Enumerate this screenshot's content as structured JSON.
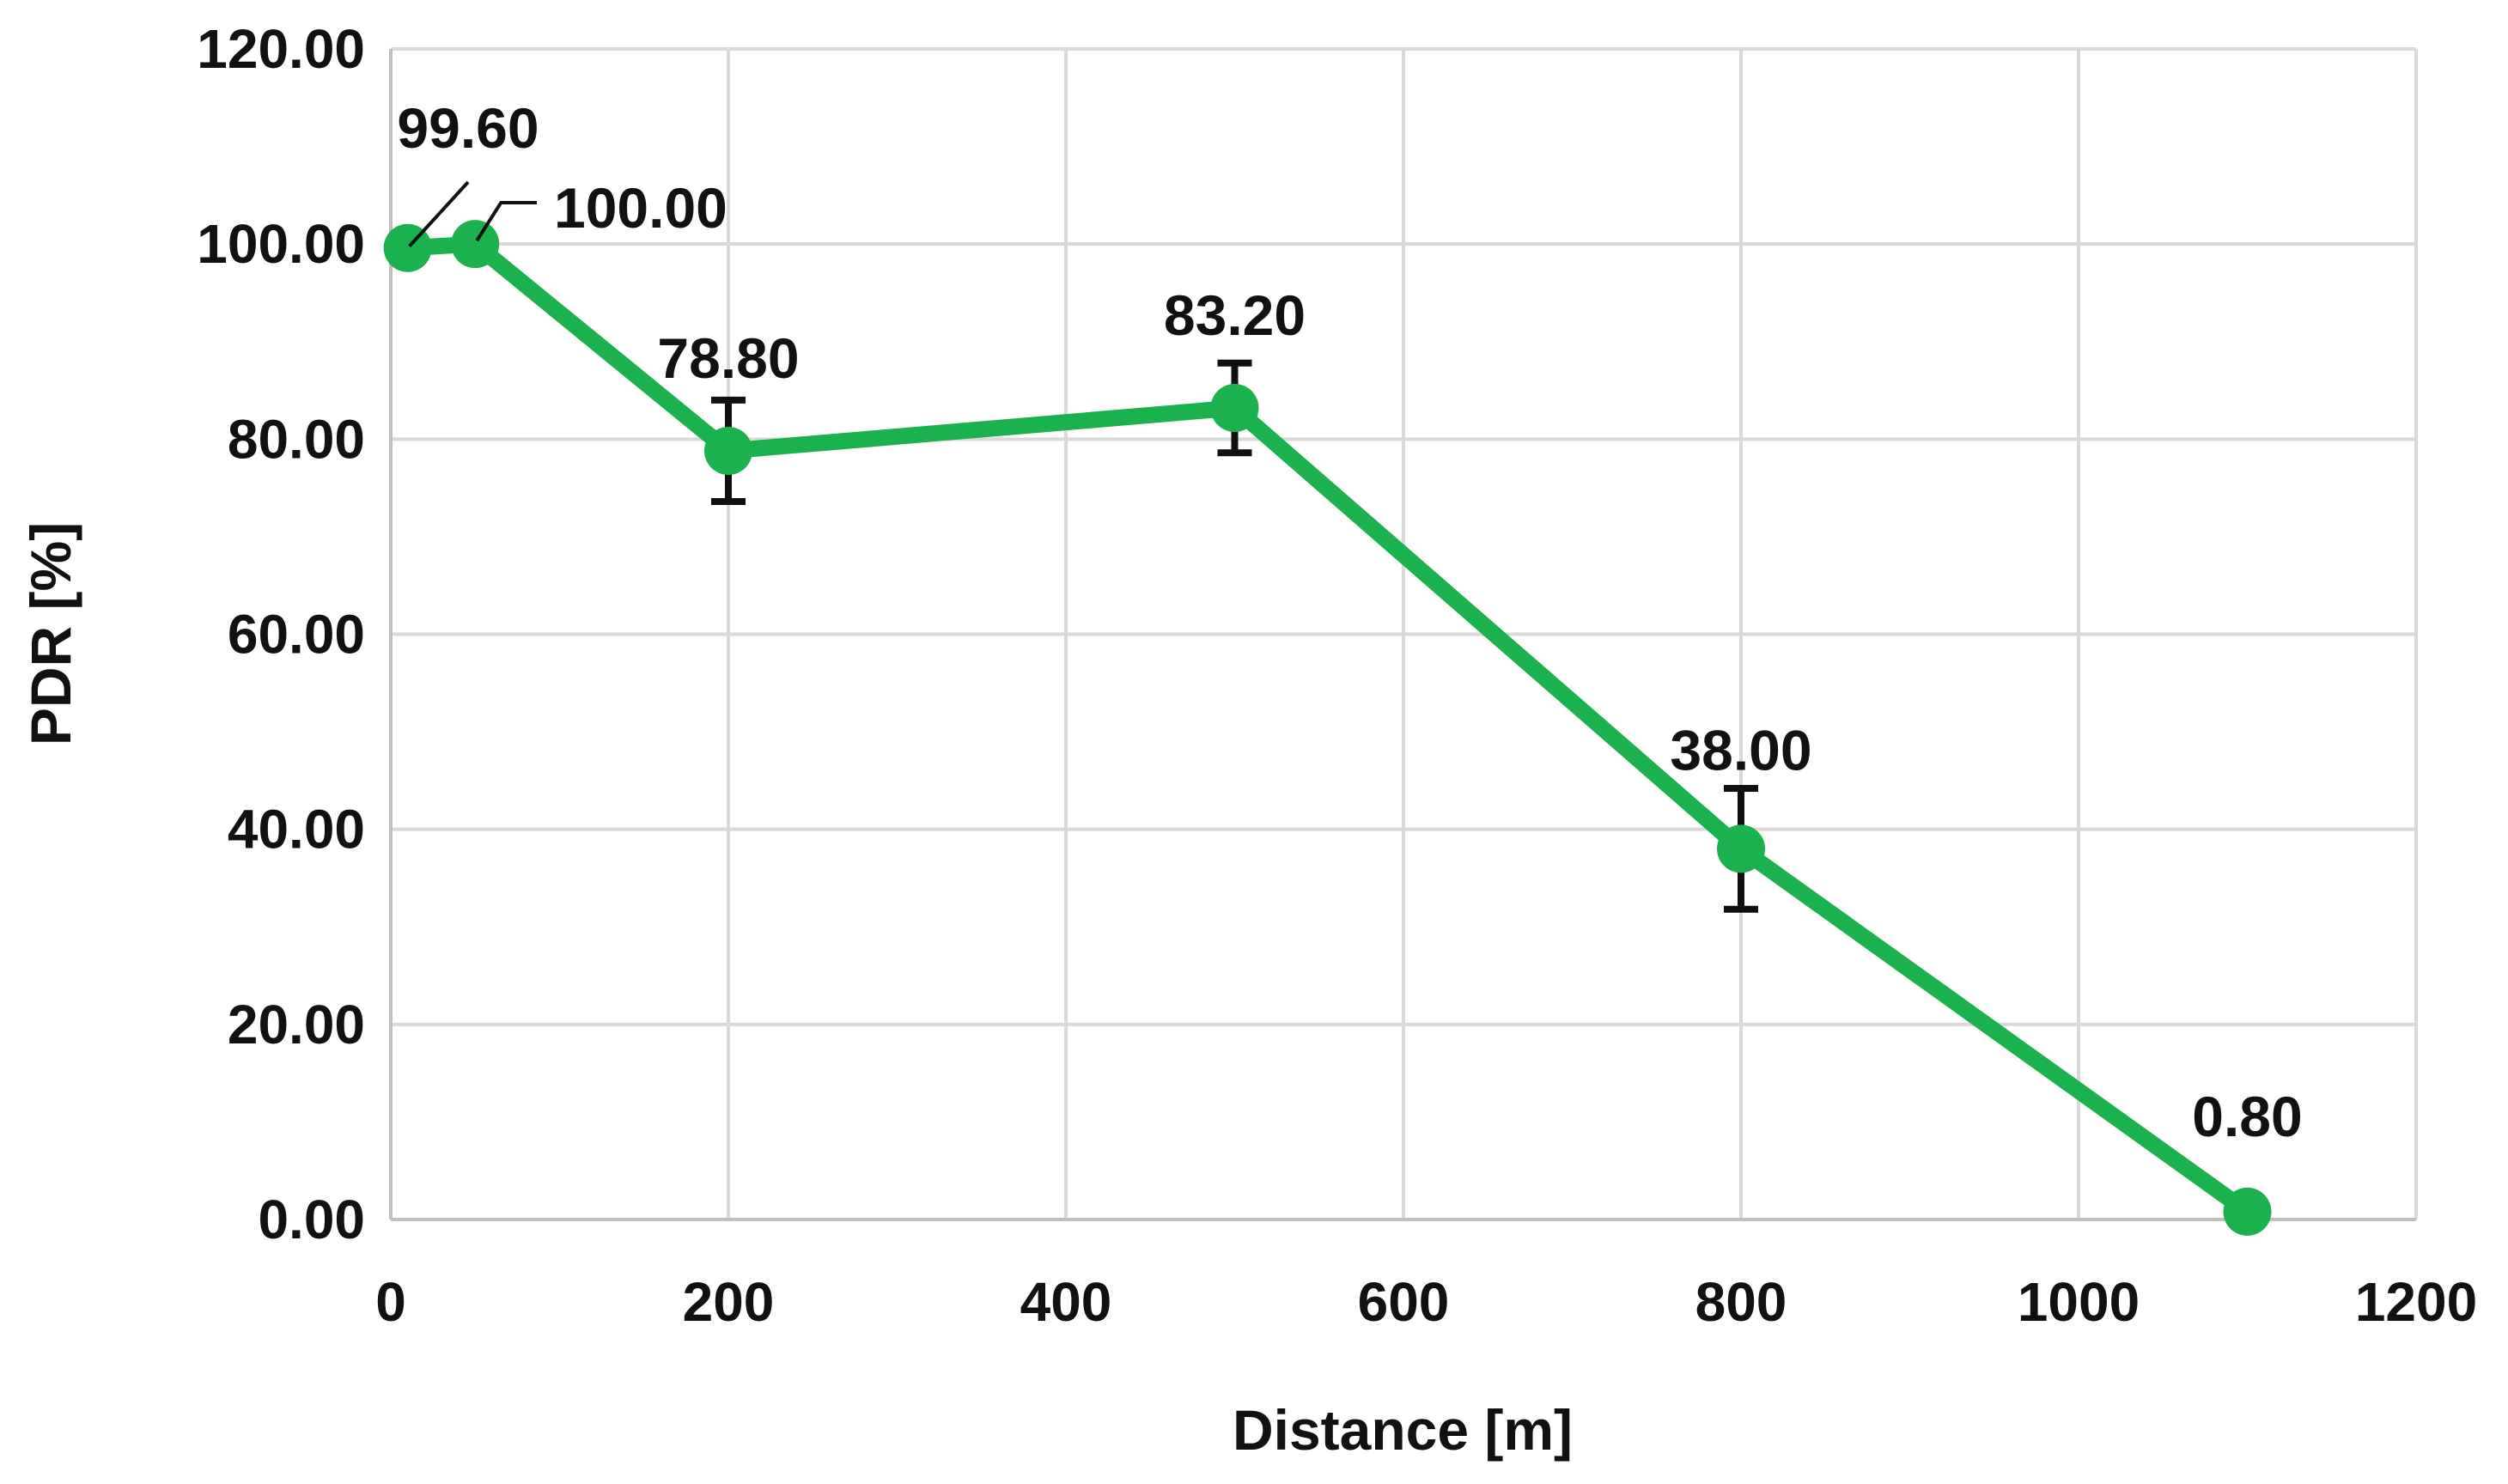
{
  "chart_data": {
    "type": "line",
    "title": "",
    "xlabel": "Distance [m]",
    "ylabel": "PDR [%]",
    "xlim": [
      0,
      1200
    ],
    "ylim": [
      0,
      120
    ],
    "x_ticks": [
      "0",
      "200",
      "400",
      "600",
      "800",
      "1000",
      "1200"
    ],
    "y_ticks": [
      "0.00",
      "20.00",
      "40.00",
      "60.00",
      "80.00",
      "100.00",
      "120.00"
    ],
    "grid": true,
    "legend": "none",
    "series": [
      {
        "color": "#1bb14c",
        "points": [
          {
            "x": 10,
            "y": 99.6,
            "label": "99.60",
            "error": 0
          },
          {
            "x": 50,
            "y": 100.0,
            "label": "100.00",
            "error": 0
          },
          {
            "x": 200,
            "y": 78.8,
            "label": "78.80",
            "error": 5.2
          },
          {
            "x": 500,
            "y": 83.2,
            "label": "83.20",
            "error": 4.6
          },
          {
            "x": 800,
            "y": 38.0,
            "label": "38.00",
            "error": 6.2
          },
          {
            "x": 1100,
            "y": 0.8,
            "label": "0.80",
            "error": 0
          }
        ]
      }
    ]
  },
  "colors": {
    "line": "#1bb14c",
    "marker": "#1bb14c",
    "grid": "#d9d9d9",
    "axis": "#bfbfbf",
    "text": "#111111",
    "error_bar": "#111111"
  }
}
